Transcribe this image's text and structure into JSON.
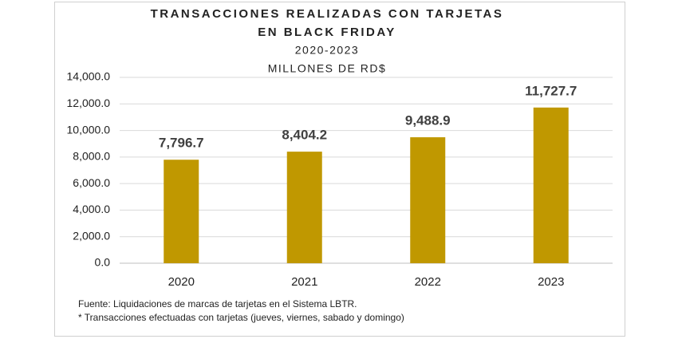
{
  "chart_data": {
    "type": "bar",
    "title_lines": [
      "TRANSACCIONES REALIZADAS CON TARJETAS",
      "EN BLACK FRIDAY"
    ],
    "subtitle_lines": [
      "2020-2023",
      "MILLONES DE RD$"
    ],
    "categories": [
      "2020",
      "2021",
      "2022",
      "2023"
    ],
    "values": [
      7796.7,
      8404.2,
      9488.9,
      11727.7
    ],
    "value_labels": [
      "7,796.7",
      "8,404.2",
      "9,488.9",
      "11,727.7"
    ],
    "color": "#c09800",
    "ylim": [
      0,
      14000
    ],
    "yticks": [
      {
        "value": 0,
        "label": "0.0"
      },
      {
        "value": 2000,
        "label": "2,000.0"
      },
      {
        "value": 4000,
        "label": "4,000.0"
      },
      {
        "value": 6000,
        "label": "6,000.0"
      },
      {
        "value": 8000,
        "label": "8,000.0"
      },
      {
        "value": 10000,
        "label": "10,000.0"
      },
      {
        "value": 12000,
        "label": "12,000.0"
      },
      {
        "value": 14000,
        "label": "14,000.0"
      }
    ],
    "grid": true,
    "notes": [
      "Fuente: Liquidaciones de marcas de tarjetas en el Sistema LBTR.",
      "* Transacciones efectuadas con tarjetas (jueves, viernes, sabado y domingo)"
    ]
  }
}
